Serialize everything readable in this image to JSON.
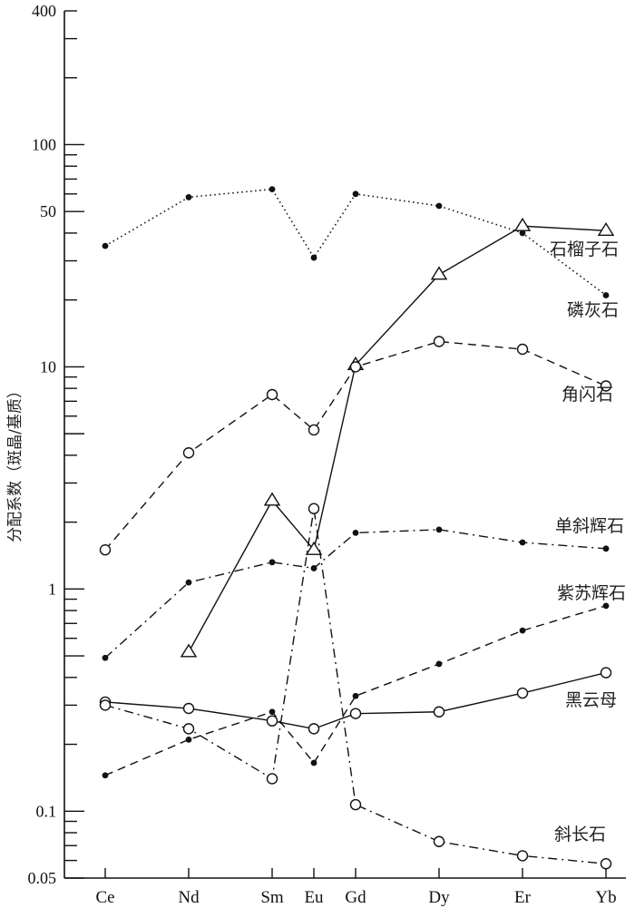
{
  "chart_data": {
    "type": "line",
    "ylabel": "分配系数（斑晶/基质）",
    "xlabel": "",
    "yscale": "log",
    "ylim": [
      0.05,
      400
    ],
    "y_ticks": [
      {
        "value": 0.05,
        "label": "0.05"
      },
      {
        "value": 0.1,
        "label": "0.1"
      },
      {
        "value": 1,
        "label": "1"
      },
      {
        "value": 10,
        "label": "10"
      },
      {
        "value": 50,
        "label": "50"
      },
      {
        "value": 100,
        "label": "100"
      },
      {
        "value": 400,
        "label": "400"
      }
    ],
    "categories": [
      "Ce",
      "Nd",
      "Sm",
      "Eu",
      "Gd",
      "Dy",
      "Er",
      "Yb"
    ],
    "category_positions": [
      58,
      60,
      62,
      63,
      64,
      66,
      68,
      70
    ],
    "series": [
      {
        "name": "石榴子石",
        "style": "solid",
        "marker": "triangle",
        "values": [
          null,
          0.52,
          2.5,
          1.5,
          10.2,
          26,
          43,
          41
        ]
      },
      {
        "name": "磷灰石",
        "style": "dotted",
        "marker": "dot",
        "values": [
          35,
          58,
          63,
          31,
          60,
          53,
          40,
          21
        ]
      },
      {
        "name": "角闪石",
        "style": "dashed",
        "marker": "circle",
        "values": [
          1.5,
          4.1,
          7.5,
          5.2,
          10,
          13,
          12,
          8.2
        ]
      },
      {
        "name": "单斜辉石",
        "style": "dashdot",
        "marker": "dot",
        "values": [
          0.49,
          1.07,
          1.32,
          1.24,
          1.79,
          1.85,
          1.62,
          1.52
        ]
      },
      {
        "name": "紫苏辉石",
        "style": "dashed",
        "marker": "dot",
        "values": [
          0.145,
          0.21,
          0.28,
          0.165,
          0.33,
          0.46,
          0.65,
          0.84
        ]
      },
      {
        "name": "黑云母",
        "style": "solid",
        "marker": "circle",
        "values": [
          0.31,
          0.29,
          0.255,
          0.235,
          0.275,
          0.28,
          0.34,
          0.42
        ]
      },
      {
        "name": "斜长石",
        "style": "dashdot",
        "marker": "circle",
        "values": [
          0.3,
          0.235,
          0.14,
          2.3,
          0.107,
          0.073,
          0.063,
          0.058
        ]
      }
    ]
  }
}
